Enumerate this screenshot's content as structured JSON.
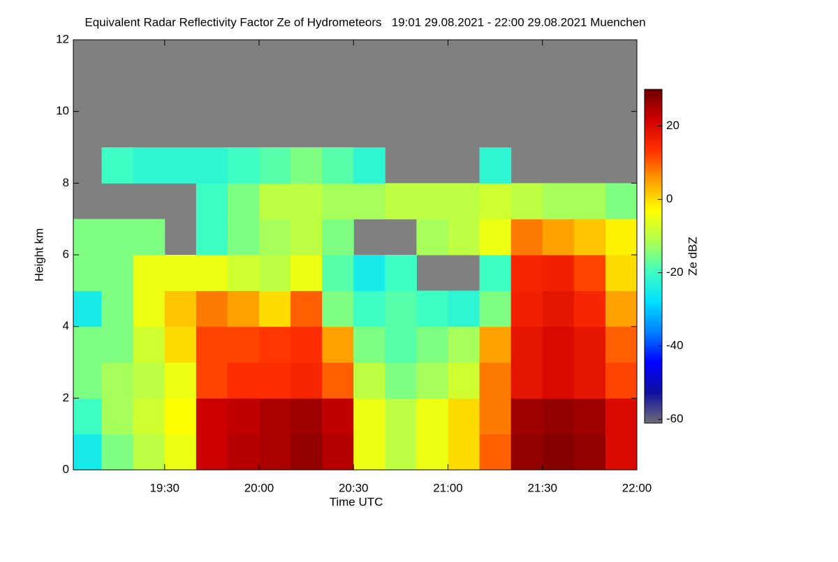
{
  "chart_data": {
    "type": "heatmap",
    "title": "Equivalent Radar Reflectivity Factor Ze of Hydrometeors   19:01 29.08.2021 - 22:00 29.08.2021 Muenchen",
    "xlabel": "Time UTC",
    "ylabel": "Height km",
    "xlim": [
      "19:01",
      "22:00"
    ],
    "xticks": [
      "19:30",
      "20:00",
      "20:30",
      "21:00",
      "21:30",
      "22:00"
    ],
    "ylim": [
      0,
      12
    ],
    "yticks": [
      0,
      2,
      4,
      6,
      8,
      10,
      12
    ],
    "x_edges": [
      "19:01",
      "19:10",
      "19:20",
      "19:30",
      "19:40",
      "19:50",
      "20:00",
      "20:10",
      "20:20",
      "20:30",
      "20:40",
      "20:50",
      "21:00",
      "21:10",
      "21:20",
      "21:30",
      "21:40",
      "21:50",
      "22:00"
    ],
    "y_edges": [
      0,
      1,
      2,
      3,
      4,
      5,
      6,
      7,
      8,
      9
    ],
    "values": [
      [
        -25,
        -15,
        -10,
        -5,
        22,
        24,
        25,
        27,
        24,
        -5,
        -10,
        -5,
        0,
        10,
        27,
        28,
        27,
        20
      ],
      [
        -20,
        -12,
        -8,
        -3,
        22,
        23,
        25,
        26,
        23,
        -5,
        -10,
        -5,
        0,
        8,
        26,
        27,
        26,
        20
      ],
      [
        -15,
        -12,
        -10,
        -5,
        12,
        14,
        14,
        15,
        10,
        -10,
        -15,
        -12,
        -8,
        8,
        18,
        20,
        18,
        12
      ],
      [
        -15,
        -15,
        -8,
        0,
        12,
        12,
        13,
        14,
        5,
        -15,
        -18,
        -15,
        -12,
        5,
        18,
        20,
        18,
        10
      ],
      [
        -25,
        -15,
        -5,
        2,
        8,
        5,
        0,
        10,
        -15,
        -20,
        -18,
        -20,
        -22,
        -15,
        16,
        18,
        15,
        5
      ],
      [
        -15,
        -15,
        -5,
        -5,
        -5,
        -8,
        -10,
        -5,
        -18,
        -25,
        -20,
        null,
        null,
        -20,
        15,
        16,
        12,
        0
      ],
      [
        -15,
        -15,
        -15,
        null,
        -20,
        -15,
        -12,
        -10,
        -15,
        null,
        null,
        -12,
        -10,
        -5,
        8,
        5,
        2,
        -2
      ],
      [
        null,
        null,
        null,
        null,
        -20,
        -15,
        -10,
        -10,
        -12,
        -12,
        -10,
        -10,
        -10,
        -8,
        -10,
        -12,
        -12,
        -15
      ],
      [
        null,
        -20,
        -22,
        -22,
        -22,
        -20,
        -18,
        -15,
        -18,
        -22,
        null,
        null,
        null,
        -22,
        null,
        null,
        null,
        null
      ]
    ],
    "background": "#808080",
    "colorbar_label": "Ze dBZ",
    "clim": [
      -61,
      30
    ],
    "cticks": [
      20,
      0,
      -20,
      -40,
      -60
    ],
    "colormap": [
      "#6e6e78",
      "#1010a0",
      "#0000ff",
      "#0080ff",
      "#00e0ff",
      "#40ffc0",
      "#b0ff50",
      "#ffff00",
      "#ffa000",
      "#ff3000",
      "#d00000",
      "#700000"
    ]
  }
}
